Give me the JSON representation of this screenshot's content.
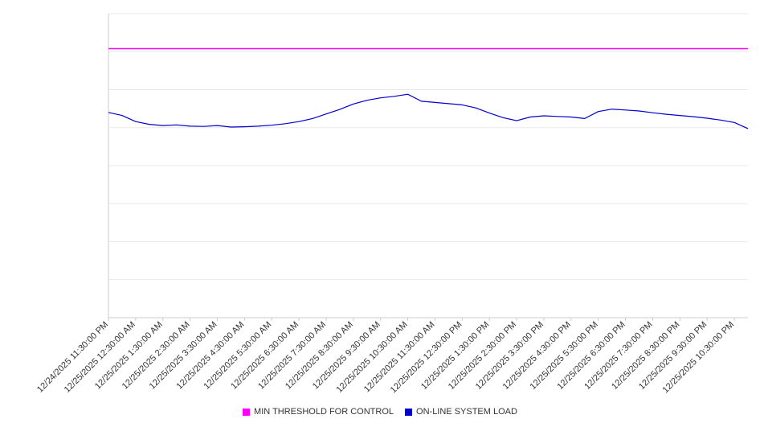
{
  "chart_data": {
    "type": "line",
    "title": "",
    "xlabel": "",
    "ylabel": "",
    "ylim": [
      0,
      100
    ],
    "grid": "horizontal",
    "grid_color": "#e9e9e9",
    "axis_color": "#cccccc",
    "label_color": "#333333",
    "legend_position": "bottom-center",
    "x_labels": [
      "12/24/2025 11:30:00 PM",
      "12/25/2025 12:30:00 AM",
      "12/25/2025 1:30:00 AM",
      "12/25/2025 2:30:00 AM",
      "12/25/2025 3:30:00 AM",
      "12/25/2025 4:30:00 AM",
      "12/25/2025 5:30:00 AM",
      "12/25/2025 6:30:00 AM",
      "12/25/2025 7:30:00 AM",
      "12/25/2025 8:30:00 AM",
      "12/25/2025 9:30:00 AM",
      "12/25/2025 10:30:00 AM",
      "12/25/2025 11:30:00 AM",
      "12/25/2025 12:30:00 PM",
      "12/25/2025 1:30:00 PM",
      "12/25/2025 2:30:00 PM",
      "12/25/2025 3:30:00 PM",
      "12/25/2025 4:30:00 PM",
      "12/25/2025 5:30:00 PM",
      "12/25/2025 6:30:00 PM",
      "12/25/2025 7:30:00 PM",
      "12/25/2025 8:30:00 PM",
      "12/25/2025 9:30:00 PM",
      "12/25/2025 10:30:00 PM"
    ],
    "series": [
      {
        "name": "MIN THRESHOLD FOR CONTROL",
        "color": "#ff00ff",
        "kind": "threshold",
        "value": 88.5
      },
      {
        "name": "ON-LINE SYSTEM LOAD",
        "color": "#0000cd",
        "kind": "line",
        "values": [
          67.5,
          66.5,
          64.5,
          63.6,
          63.2,
          63.4,
          63.0,
          62.9,
          63.2,
          62.7,
          62.8,
          63.0,
          63.3,
          63.8,
          64.5,
          65.5,
          67.0,
          68.5,
          70.3,
          71.5,
          72.3,
          72.8,
          73.5,
          71.2,
          70.8,
          70.4,
          70.0,
          69.0,
          67.3,
          65.8,
          64.8,
          66.0,
          66.4,
          66.2,
          66.0,
          65.5,
          67.8,
          68.6,
          68.3,
          68.0,
          67.4,
          66.9,
          66.5,
          66.1,
          65.6,
          65.0,
          64.2,
          62.2
        ]
      }
    ]
  }
}
